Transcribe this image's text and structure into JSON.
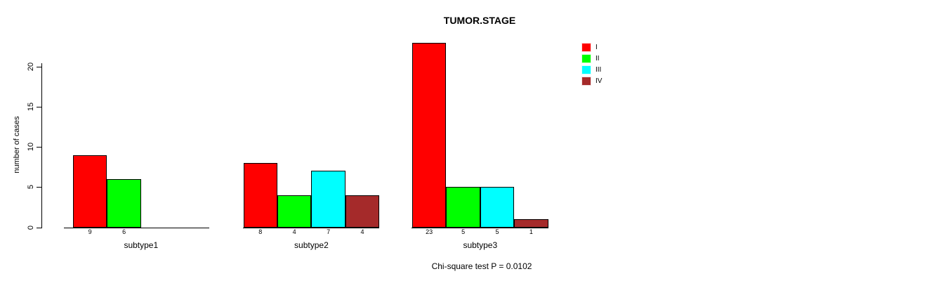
{
  "title": "TUMOR.STAGE",
  "subtitle": "Chi-square test P = 0.0102",
  "ylabel": "number of cases",
  "legend": {
    "position": "top-right",
    "entries": [
      {
        "label": "I",
        "color": "#FF0000"
      },
      {
        "label": "II",
        "color": "#00FF00"
      },
      {
        "label": "III",
        "color": "#00FFFF"
      },
      {
        "label": "IV",
        "color": "#A52A2A"
      }
    ]
  },
  "chart_data": {
    "type": "bar",
    "title": "TUMOR.STAGE",
    "xlabel": "",
    "ylabel": "number of cases",
    "categories": [
      "subtype1",
      "subtype2",
      "subtype3"
    ],
    "series": [
      {
        "name": "I",
        "color": "#FF0000",
        "values": [
          9,
          8,
          23
        ]
      },
      {
        "name": "II",
        "color": "#00FF00",
        "values": [
          6,
          4,
          5
        ]
      },
      {
        "name": "III",
        "color": "#00FFFF",
        "values": [
          0,
          7,
          5
        ]
      },
      {
        "name": "IV",
        "color": "#A52A2A",
        "values": [
          0,
          4,
          1
        ]
      }
    ],
    "bar_labels": [
      [
        "9",
        "6",
        null,
        null
      ],
      [
        "8",
        "4",
        "7",
        "4"
      ],
      [
        "23",
        "5",
        "5",
        "1"
      ]
    ],
    "yticks": [
      0,
      5,
      10,
      15,
      20
    ],
    "ylim": [
      0,
      23.3
    ],
    "grid": false,
    "legend_position": "top-right",
    "annotation": "Chi-square test P = 0.0102"
  }
}
